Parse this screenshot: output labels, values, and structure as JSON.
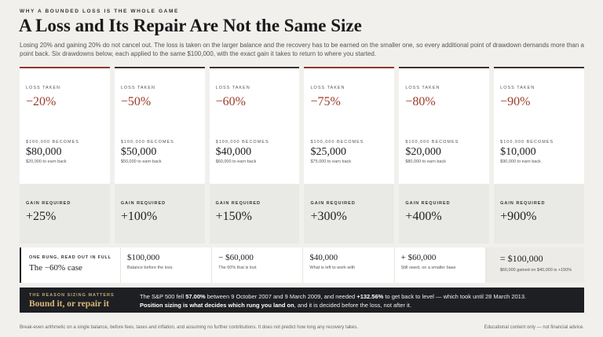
{
  "header": {
    "kicker": "WHY A BOUNDED LOSS IS THE WHOLE GAME",
    "title": "A Loss and Its Repair Are Not the Same Size",
    "intro": "Losing 20% and gaining 20% do not cancel out. The loss is taken on the larger balance and the recovery has to be earned on the smaller one, so every additional point of drawdown demands more than a point back. Six drawdowns below, each applied to the same $100,000, with the exact gain it takes to return to where you started."
  },
  "cards": [
    {
      "loss_label": "LOSS TAKEN",
      "loss": "−20%",
      "balance_label": "$100,000 BECOMES",
      "balance": "$80,000",
      "balance_note": "$20,000 to earn back",
      "gain_label": "GAIN REQUIRED",
      "gain": "+25%"
    },
    {
      "loss_label": "LOSS TAKEN",
      "loss": "−50%",
      "balance_label": "$100,000 BECOMES",
      "balance": "$50,000",
      "balance_note": "$50,000 to earn back",
      "gain_label": "GAIN REQUIRED",
      "gain": "+100%"
    },
    {
      "loss_label": "LOSS TAKEN",
      "loss": "−60%",
      "balance_label": "$100,000 BECOMES",
      "balance": "$40,000",
      "balance_note": "$60,000 to earn back",
      "gain_label": "GAIN REQUIRED",
      "gain": "+150%"
    },
    {
      "loss_label": "LOSS TAKEN",
      "loss": "−75%",
      "balance_label": "$100,000 BECOMES",
      "balance": "$25,000",
      "balance_note": "$75,000 to earn back",
      "gain_label": "GAIN REQUIRED",
      "gain": "+300%"
    },
    {
      "loss_label": "LOSS TAKEN",
      "loss": "−80%",
      "balance_label": "$100,000 BECOMES",
      "balance": "$20,000",
      "balance_note": "$80,000 to earn back",
      "gain_label": "GAIN REQUIRED",
      "gain": "+400%"
    },
    {
      "loss_label": "LOSS TAKEN",
      "loss": "−90%",
      "balance_label": "$100,000 BECOMES",
      "balance": "$10,000",
      "balance_note": "$90,000 to earn back",
      "gain_label": "GAIN REQUIRED",
      "gain": "+900%"
    }
  ],
  "case": {
    "kicker": "ONE RUNG, READ OUT IN FULL",
    "title": "The −60% case",
    "steps": [
      {
        "value": "$100,000",
        "note": "Balance before the loss"
      },
      {
        "value": "− $60,000",
        "note": "The 60% that is lost"
      },
      {
        "value": "$40,000",
        "note": "What is left to work with"
      },
      {
        "value": "+ $60,000",
        "note": "Still owed, on a smaller base"
      },
      {
        "value": "= $100,000",
        "note": "$60,000 gained on $40,000 is +150%"
      }
    ]
  },
  "banner": {
    "kicker": "THE REASON SIZING MATTERS",
    "title": "Bound it, or repair it",
    "line1": [
      "The S&P 500 fell ",
      "57.00%",
      " between 9 October 2007 and 9 March 2009, and needed ",
      "+132.56%",
      " to get back to level — which took until 28 March 2013."
    ],
    "line2": [
      "Position sizing is what decides which rung you land on",
      ", and it is decided before the loss, not after it."
    ]
  },
  "footer": {
    "left": "Break-even arithmetic on a single balance, before fees, taxes and inflation, and assuming no further contributions. It does not predict how long any recovery takes.",
    "right": "Educational content only — not financial advice."
  }
}
